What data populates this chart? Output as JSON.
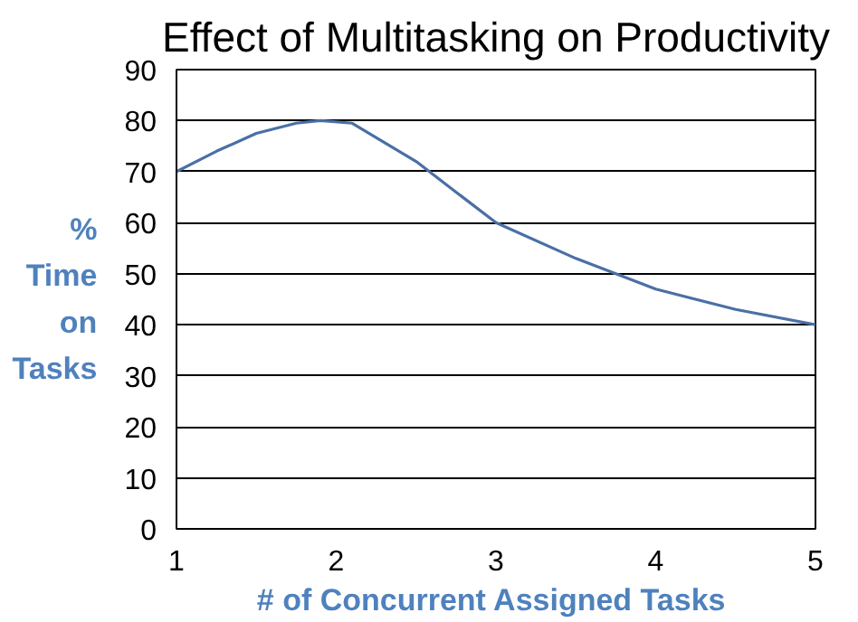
{
  "chart_data": {
    "type": "line",
    "title": "Effect of Multitasking on Productivity",
    "xlabel": "# of Concurrent  Assigned Tasks",
    "ylabel": "% Time on Tasks",
    "x": [
      1,
      1.25,
      1.5,
      1.75,
      1.9,
      2.1,
      2.5,
      3,
      3.5,
      4,
      4.5,
      5
    ],
    "series": [
      {
        "color": "#4a6fa5",
        "values": [
          70,
          74,
          77.5,
          79.5,
          80,
          79.5,
          72,
          60,
          53,
          47,
          43,
          40
        ]
      }
    ],
    "xlim": [
      1,
      5
    ],
    "xticks": [
      1,
      2,
      3,
      4,
      5
    ],
    "ylim": [
      0,
      90
    ],
    "yticks": [
      0,
      10,
      20,
      30,
      40,
      50,
      60,
      70,
      80,
      90
    ],
    "grid": "y",
    "marker": "none",
    "line_style": "solid"
  }
}
